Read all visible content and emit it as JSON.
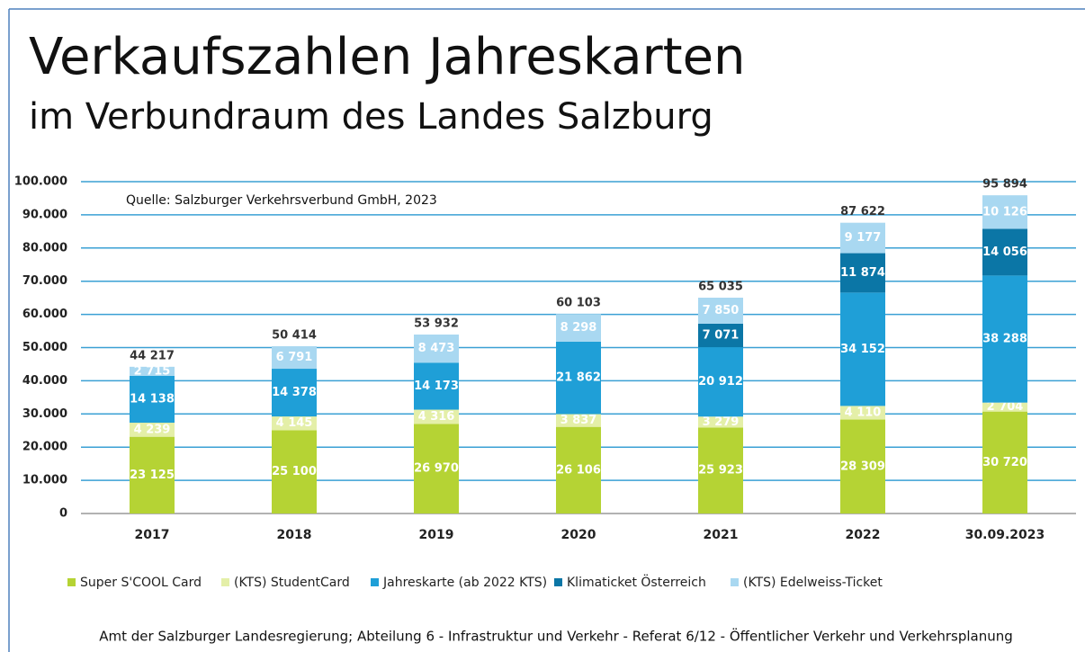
{
  "chart_data": {
    "type": "stacked-bar",
    "title": "Verkaufszahlen Jahreskarten",
    "subtitle": "im Verbundraum des Landes Salzburg",
    "source": "Quelle: Salzburger Verkehrsverbund GmbH, 2023",
    "footer": "Amt der Salzburger Landesregierung; Abteilung 6 - Infrastruktur und Verkehr - Referat 6/12 - Öffentlicher Verkehr und Verkehrsplanung",
    "categories": [
      "2017",
      "2018",
      "2019",
      "2020",
      "2021",
      "2022",
      "30.09.2023"
    ],
    "series": [
      {
        "name": "Super S'COOL Card",
        "color": "#b5d334",
        "values": [
          23125,
          25100,
          26970,
          26106,
          25923,
          28309,
          30720
        ],
        "value_labels": [
          "23 125",
          "25 100",
          "26 970",
          "26 106",
          "25 923",
          "28 309",
          "30 720"
        ]
      },
      {
        "name": "(KTS) StudentCard",
        "color": "#e4efa8",
        "values": [
          4239,
          4145,
          4316,
          3837,
          3279,
          4110,
          2704
        ],
        "value_labels": [
          "4 239",
          "4 145",
          "4 316",
          "3 837",
          "3 279",
          "4 110",
          "2 704"
        ]
      },
      {
        "name": "Jahreskarte (ab 2022 KTS)",
        "color": "#1f9fd7",
        "values": [
          14138,
          14378,
          14173,
          21862,
          20912,
          34152,
          38288
        ],
        "value_labels": [
          "14 138",
          "14 378",
          "14 173",
          "21 862",
          "20 912",
          "34 152",
          "38 288"
        ]
      },
      {
        "name": "Klimaticket Österreich",
        "color": "#0b76a6",
        "values": [
          null,
          null,
          null,
          null,
          7071,
          11874,
          14056
        ],
        "value_labels": [
          null,
          null,
          null,
          null,
          "7 071",
          "11 874",
          "14 056"
        ]
      },
      {
        "name": "(KTS) Edelweiss-Ticket",
        "color": "#a9d8f1",
        "values": [
          2715,
          6791,
          8473,
          8298,
          7850,
          9177,
          10126
        ],
        "value_labels": [
          "2 715",
          "6 791",
          "8 473",
          "8 298",
          "7 850",
          "9 177",
          "10 126"
        ]
      }
    ],
    "totals": {
      "values": [
        44217,
        50414,
        53932,
        60103,
        65035,
        87622,
        95894
      ],
      "value_labels": [
        "44 217",
        "50 414",
        "53 932",
        "60 103",
        "65 035",
        "87 622",
        "95 894"
      ]
    },
    "ylim": [
      0,
      100000
    ],
    "yticks": [
      0,
      {
        "value": 10000,
        "label": "10.000"
      },
      {
        "value": 20000,
        "label": "20.000"
      },
      {
        "value": 30000,
        "label": "30.000"
      },
      {
        "value": 40000,
        "label": "40.000"
      },
      {
        "value": 50000,
        "label": "50.000"
      },
      {
        "value": 60000,
        "label": "60.000"
      },
      {
        "value": 70000,
        "label": "70.000"
      },
      {
        "value": 80000,
        "label": "80.000"
      },
      {
        "value": 90000,
        "label": "90.000"
      },
      {
        "value": 100000,
        "label": "100.000"
      }
    ],
    "grid": true
  }
}
